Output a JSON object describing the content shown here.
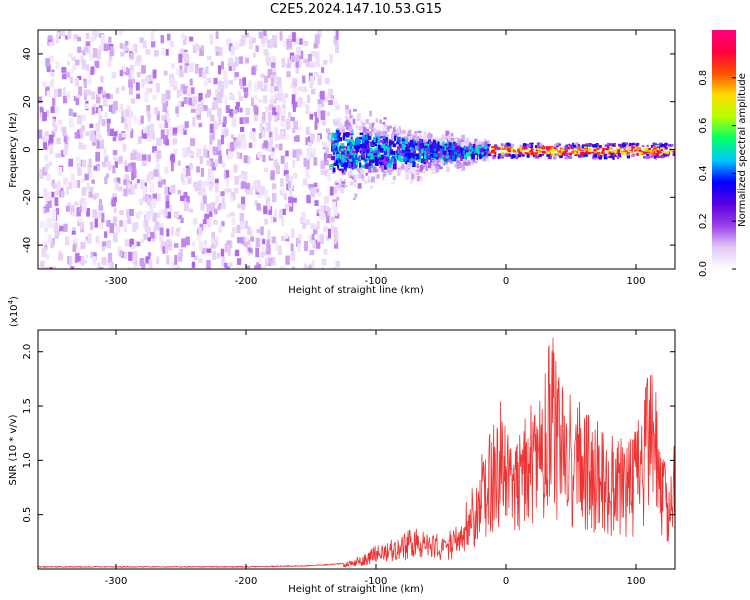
{
  "title": "C2E5.2024.147.10.53.G15",
  "chart_data": [
    {
      "type": "heatmap",
      "xlabel": "Height of straight line (km)",
      "ylabel": "Frequency (Hz)",
      "xlim": [
        -360,
        130
      ],
      "ylim": [
        -50,
        50
      ],
      "x_ticks": [
        -300,
        -200,
        -100,
        0,
        100
      ],
      "y_ticks": [
        -40,
        -20,
        0,
        20,
        40
      ],
      "colorbar": {
        "label": "Normalized spectral amplitude",
        "range": [
          0,
          1
        ],
        "ticks": [
          "0.0",
          "0.2",
          "0.4",
          "0.6",
          "0.8"
        ],
        "colors": [
          "#ffffff",
          "#e2c8f4",
          "#9a3fe8",
          "#5a00e0",
          "#0000ff",
          "#00c8ff",
          "#00ff66",
          "#b4ff00",
          "#ffdc00",
          "#ff5000",
          "#ff0040",
          "#ff0080"
        ]
      },
      "regions": [
        {
          "x_range": [
            -360,
            -135
          ],
          "freq_range": [
            -50,
            50
          ],
          "amplitude": "0.0-0.2"
        },
        {
          "x_range": [
            -135,
            -15
          ],
          "freq_center": 0,
          "freq_halfwidth": [
            25,
            5
          ],
          "amplitude": "0.1-0.5"
        },
        {
          "x_range": [
            -15,
            130
          ],
          "freq_center": 0,
          "freq_halfwidth": [
            3,
            3
          ],
          "amplitude": "0.6-1.0"
        }
      ]
    },
    {
      "type": "line",
      "xlabel": "Height of straight line (km)",
      "ylabel": "SNR (10 * v/v)",
      "scale_note": "(x10",
      "scale_exp": "4",
      "xlim": [
        -360,
        130
      ],
      "ylim": [
        0,
        2.2
      ],
      "x_ticks": [
        -300,
        -200,
        -100,
        0,
        100
      ],
      "y_ticks": [
        0.5,
        1.0,
        1.5,
        2.0
      ],
      "y_tick_labels": [
        "0.5",
        "1.0",
        "1.5",
        "2.0"
      ],
      "line_color": "#ee3333",
      "series": [
        {
          "x": [
            -360,
            -300,
            -250,
            -200,
            -150,
            -125,
            -110,
            -100,
            -90,
            -80,
            -70,
            -60,
            -50,
            -40,
            -30,
            -20,
            -10,
            0,
            10,
            20,
            30,
            35,
            40,
            50,
            60,
            70,
            80,
            90,
            100,
            110,
            115,
            120,
            125,
            130
          ],
          "y": [
            0.02,
            0.02,
            0.02,
            0.02,
            0.03,
            0.05,
            0.12,
            0.2,
            0.25,
            0.3,
            0.35,
            0.3,
            0.3,
            0.35,
            0.6,
            1.0,
            1.3,
            1.5,
            1.3,
            1.4,
            1.8,
            2.2,
            1.7,
            1.5,
            1.4,
            1.3,
            1.2,
            1.1,
            1.2,
            1.7,
            1.6,
            1.0,
            0.8,
            1.3
          ]
        }
      ]
    }
  ]
}
